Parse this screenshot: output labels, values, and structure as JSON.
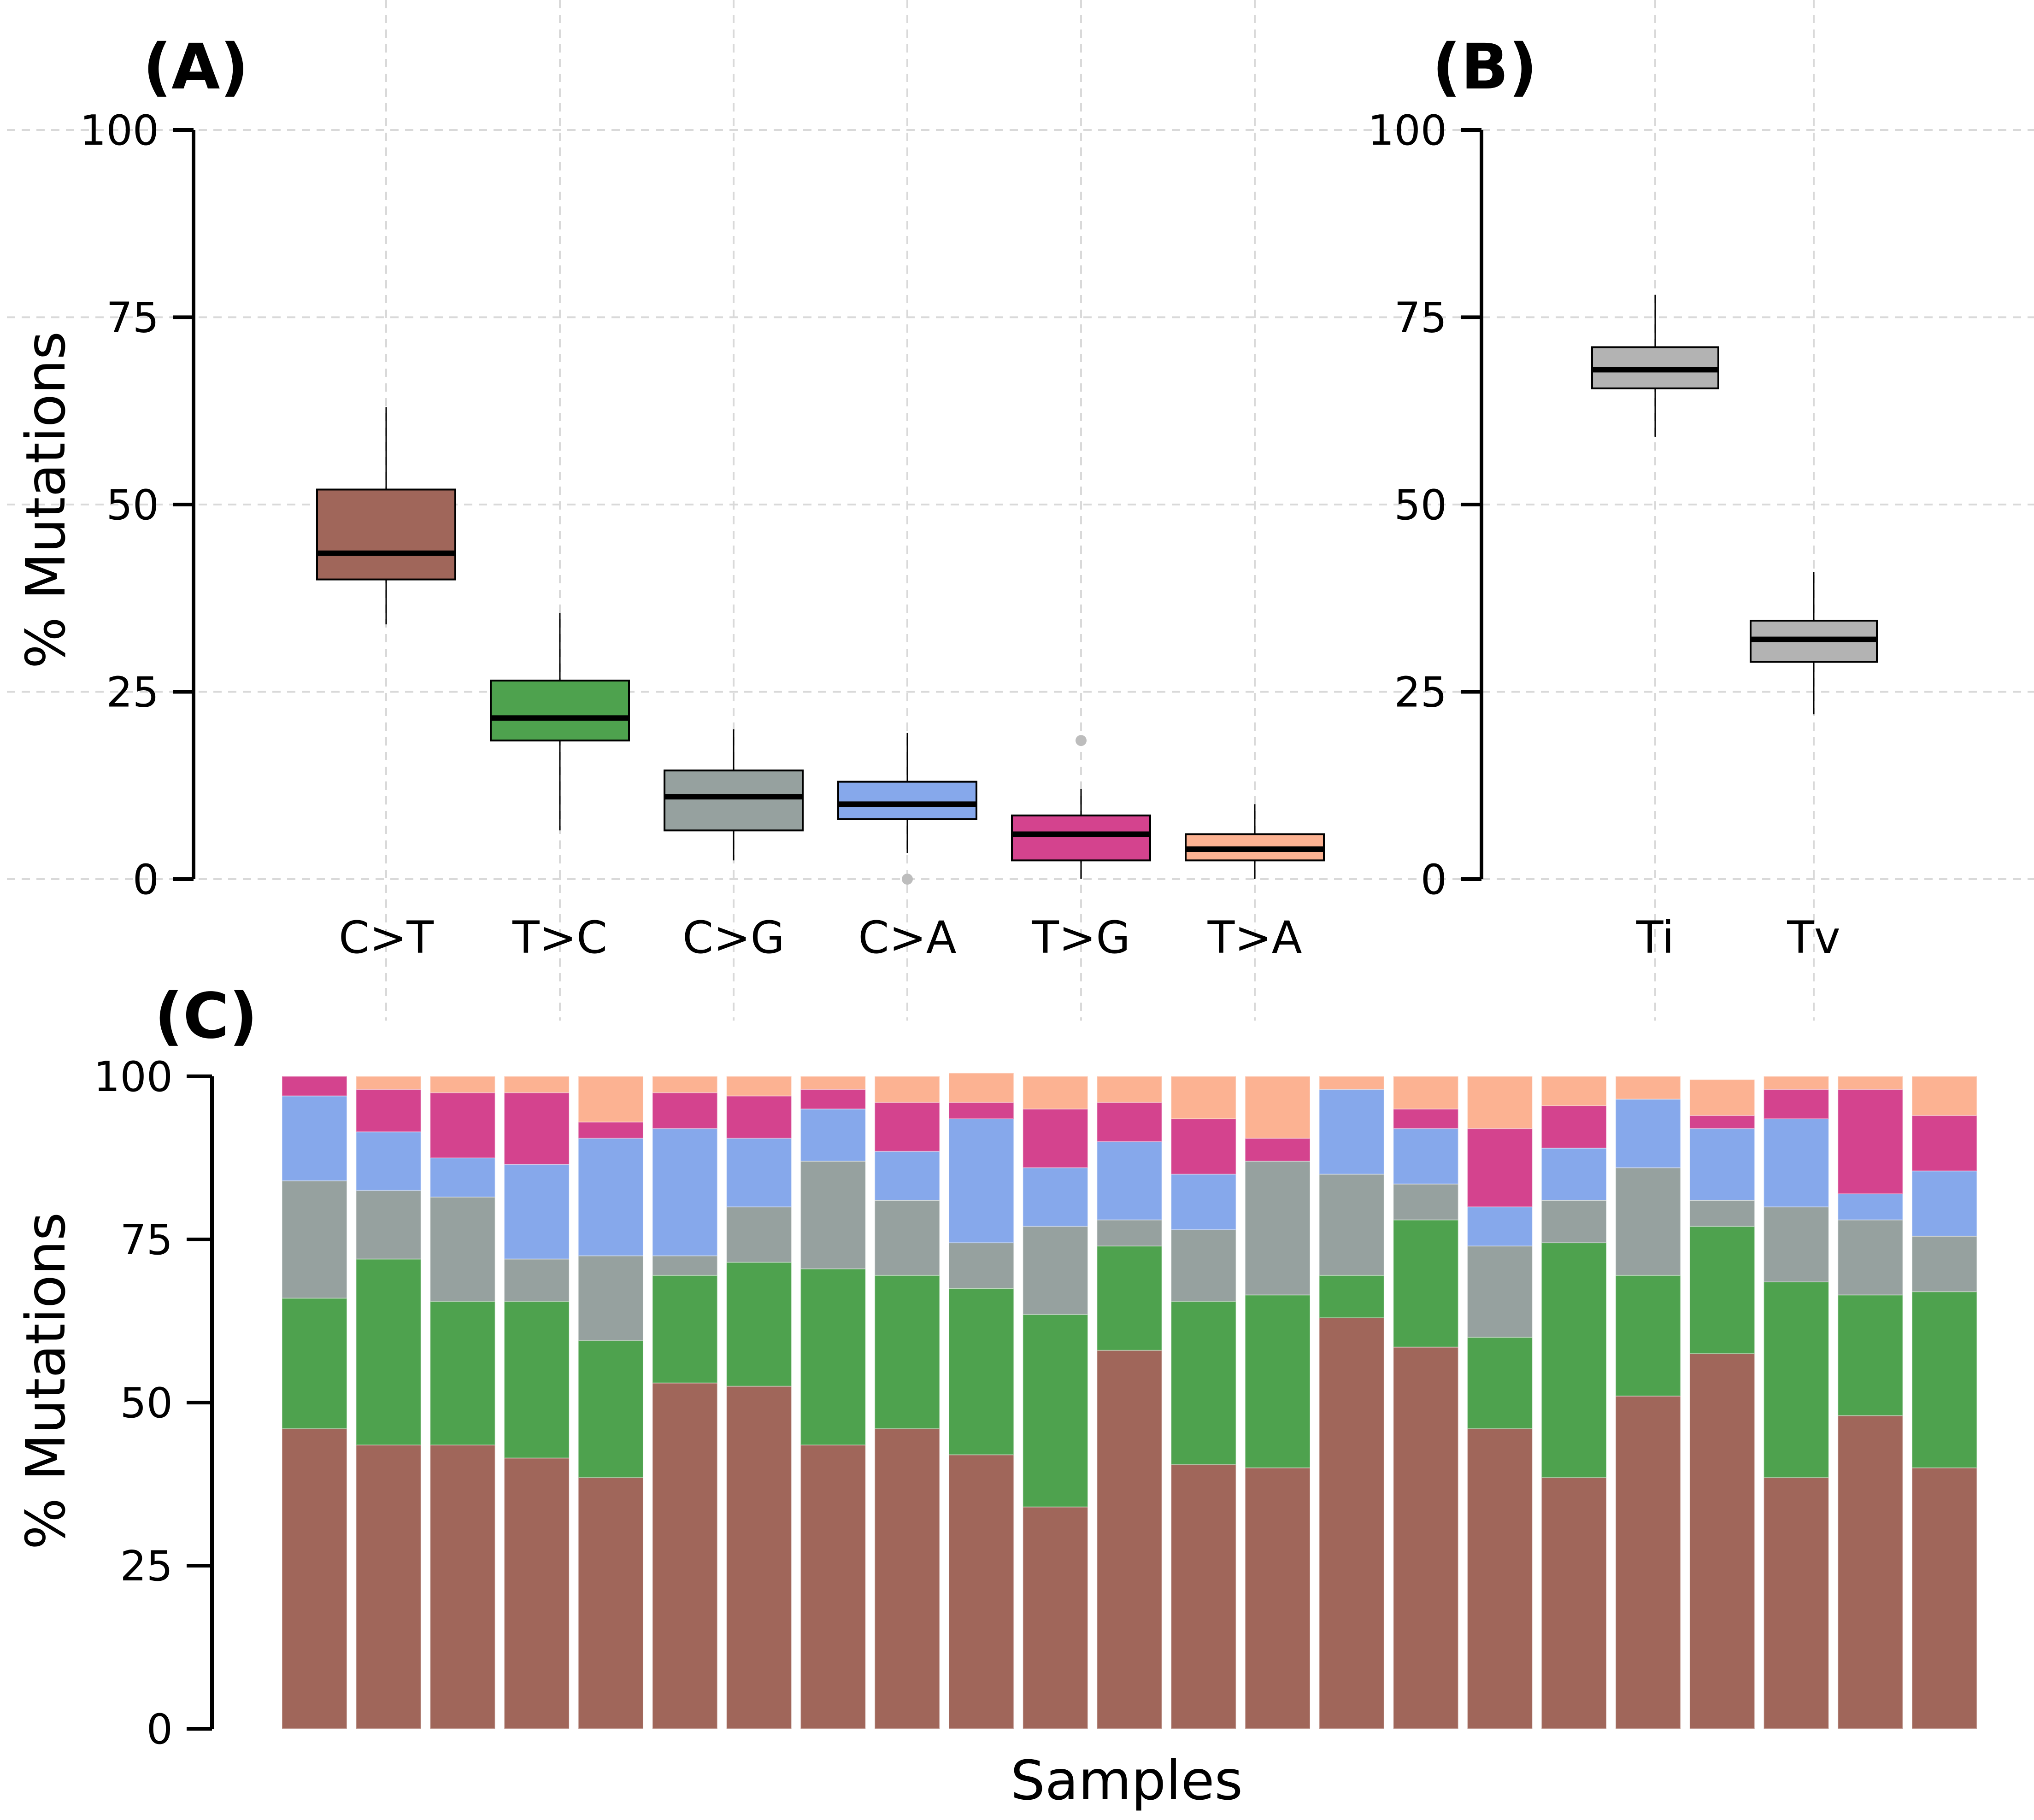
{
  "chart_data": [
    {
      "panel": "(A)",
      "type": "boxplot",
      "ylabel": "% Mutations",
      "ylim": [
        0,
        100
      ],
      "yticks": [
        0,
        25,
        50,
        75,
        100
      ],
      "grid": true,
      "categories": [
        "C>T",
        "T>C",
        "C>G",
        "C>A",
        "T>G",
        "T>A"
      ],
      "boxes": [
        {
          "label": "C>T",
          "color": "#a0665a",
          "min": 34,
          "q1": 40,
          "median": 43.5,
          "q3": 52,
          "max": 63,
          "outliers": []
        },
        {
          "label": "T>C",
          "color": "#4ea24e",
          "min": 6.5,
          "q1": 18.5,
          "median": 21.5,
          "q3": 26.5,
          "max": 35.5,
          "outliers": []
        },
        {
          "label": "C>G",
          "color": "#96a19f",
          "min": 2.5,
          "q1": 6.5,
          "median": 11,
          "q3": 14.5,
          "max": 20,
          "outliers": []
        },
        {
          "label": "C>A",
          "color": "#86a8eb",
          "min": 3.5,
          "q1": 8,
          "median": 10,
          "q3": 13,
          "max": 19.5,
          "outliers": [
            0
          ]
        },
        {
          "label": "T>G",
          "color": "#d4438e",
          "min": 0,
          "q1": 2.5,
          "median": 6,
          "q3": 8.5,
          "max": 12,
          "outliers": [
            18.5
          ]
        },
        {
          "label": "T>A",
          "color": "#fcb292",
          "min": 0,
          "q1": 2.5,
          "median": 4,
          "q3": 6,
          "max": 10,
          "outliers": []
        }
      ]
    },
    {
      "panel": "(B)",
      "type": "boxplot",
      "ylabel": "",
      "ylim": [
        0,
        100
      ],
      "yticks": [
        0,
        25,
        50,
        75,
        100
      ],
      "grid": true,
      "categories": [
        "Ti",
        "Tv"
      ],
      "boxes": [
        {
          "label": "Ti",
          "color": "#b3b3b3",
          "min": 59,
          "q1": 65.5,
          "median": 68,
          "q3": 71,
          "max": 78,
          "outliers": []
        },
        {
          "label": "Tv",
          "color": "#b3b3b3",
          "min": 22,
          "q1": 29,
          "median": 32,
          "q3": 34.5,
          "max": 41,
          "outliers": []
        }
      ]
    },
    {
      "panel": "(C)",
      "type": "stacked-bar",
      "ylabel": "% Mutations",
      "xlabel": "Samples",
      "ylim": [
        0,
        100
      ],
      "yticks": [
        0,
        25,
        50,
        75,
        100
      ],
      "grid": false,
      "series": [
        {
          "name": "C>T",
          "color": "#a0665a",
          "values": [
            46,
            43.5,
            43.5,
            41.5,
            38.5,
            53,
            52.5,
            43.5,
            46,
            42,
            34,
            58,
            40.5,
            40,
            63,
            58.5,
            46,
            38.5,
            51,
            57.5,
            38.5,
            48,
            40
          ]
        },
        {
          "name": "T>C",
          "color": "#4ea24e",
          "values": [
            20,
            28.5,
            22,
            24,
            21,
            16.5,
            19,
            27,
            23.5,
            25.5,
            29.5,
            16,
            25,
            26.5,
            6.5,
            19.5,
            14,
            36,
            18.5,
            19.5,
            30,
            18.5,
            27
          ]
        },
        {
          "name": "C>G",
          "color": "#96a19f",
          "values": [
            18,
            10.5,
            16,
            6.5,
            13,
            3,
            8.5,
            16.5,
            11.5,
            7,
            13.5,
            4,
            11,
            20.5,
            15.5,
            5.5,
            14,
            6.5,
            16.5,
            4,
            11.5,
            11.5,
            8.5
          ]
        },
        {
          "name": "C>A",
          "color": "#86a8eb",
          "values": [
            13,
            9,
            6,
            14.5,
            18,
            19.5,
            10.5,
            8,
            7.5,
            19,
            9,
            12,
            8.5,
            0,
            13,
            8.5,
            6,
            8,
            10.5,
            11,
            13.5,
            4,
            10
          ]
        },
        {
          "name": "T>G",
          "color": "#d4438e",
          "values": [
            3,
            6.5,
            10,
            11,
            2.5,
            5.5,
            6.5,
            3,
            7.5,
            2.5,
            9,
            6,
            8.5,
            3.5,
            0,
            3,
            12,
            6.5,
            0,
            2,
            4.5,
            16,
            8.5
          ],
          "note": "top segment widths derived from the visible stacks"
        },
        {
          "name": "T>A",
          "color": "#fcb292",
          "values": [
            0,
            2,
            2.5,
            2.5,
            7,
            2.5,
            3,
            2,
            4,
            4.5,
            5,
            4,
            6.5,
            9.5,
            2,
            5,
            8,
            4.5,
            3.5,
            5.5,
            2,
            2,
            6
          ]
        }
      ]
    }
  ]
}
